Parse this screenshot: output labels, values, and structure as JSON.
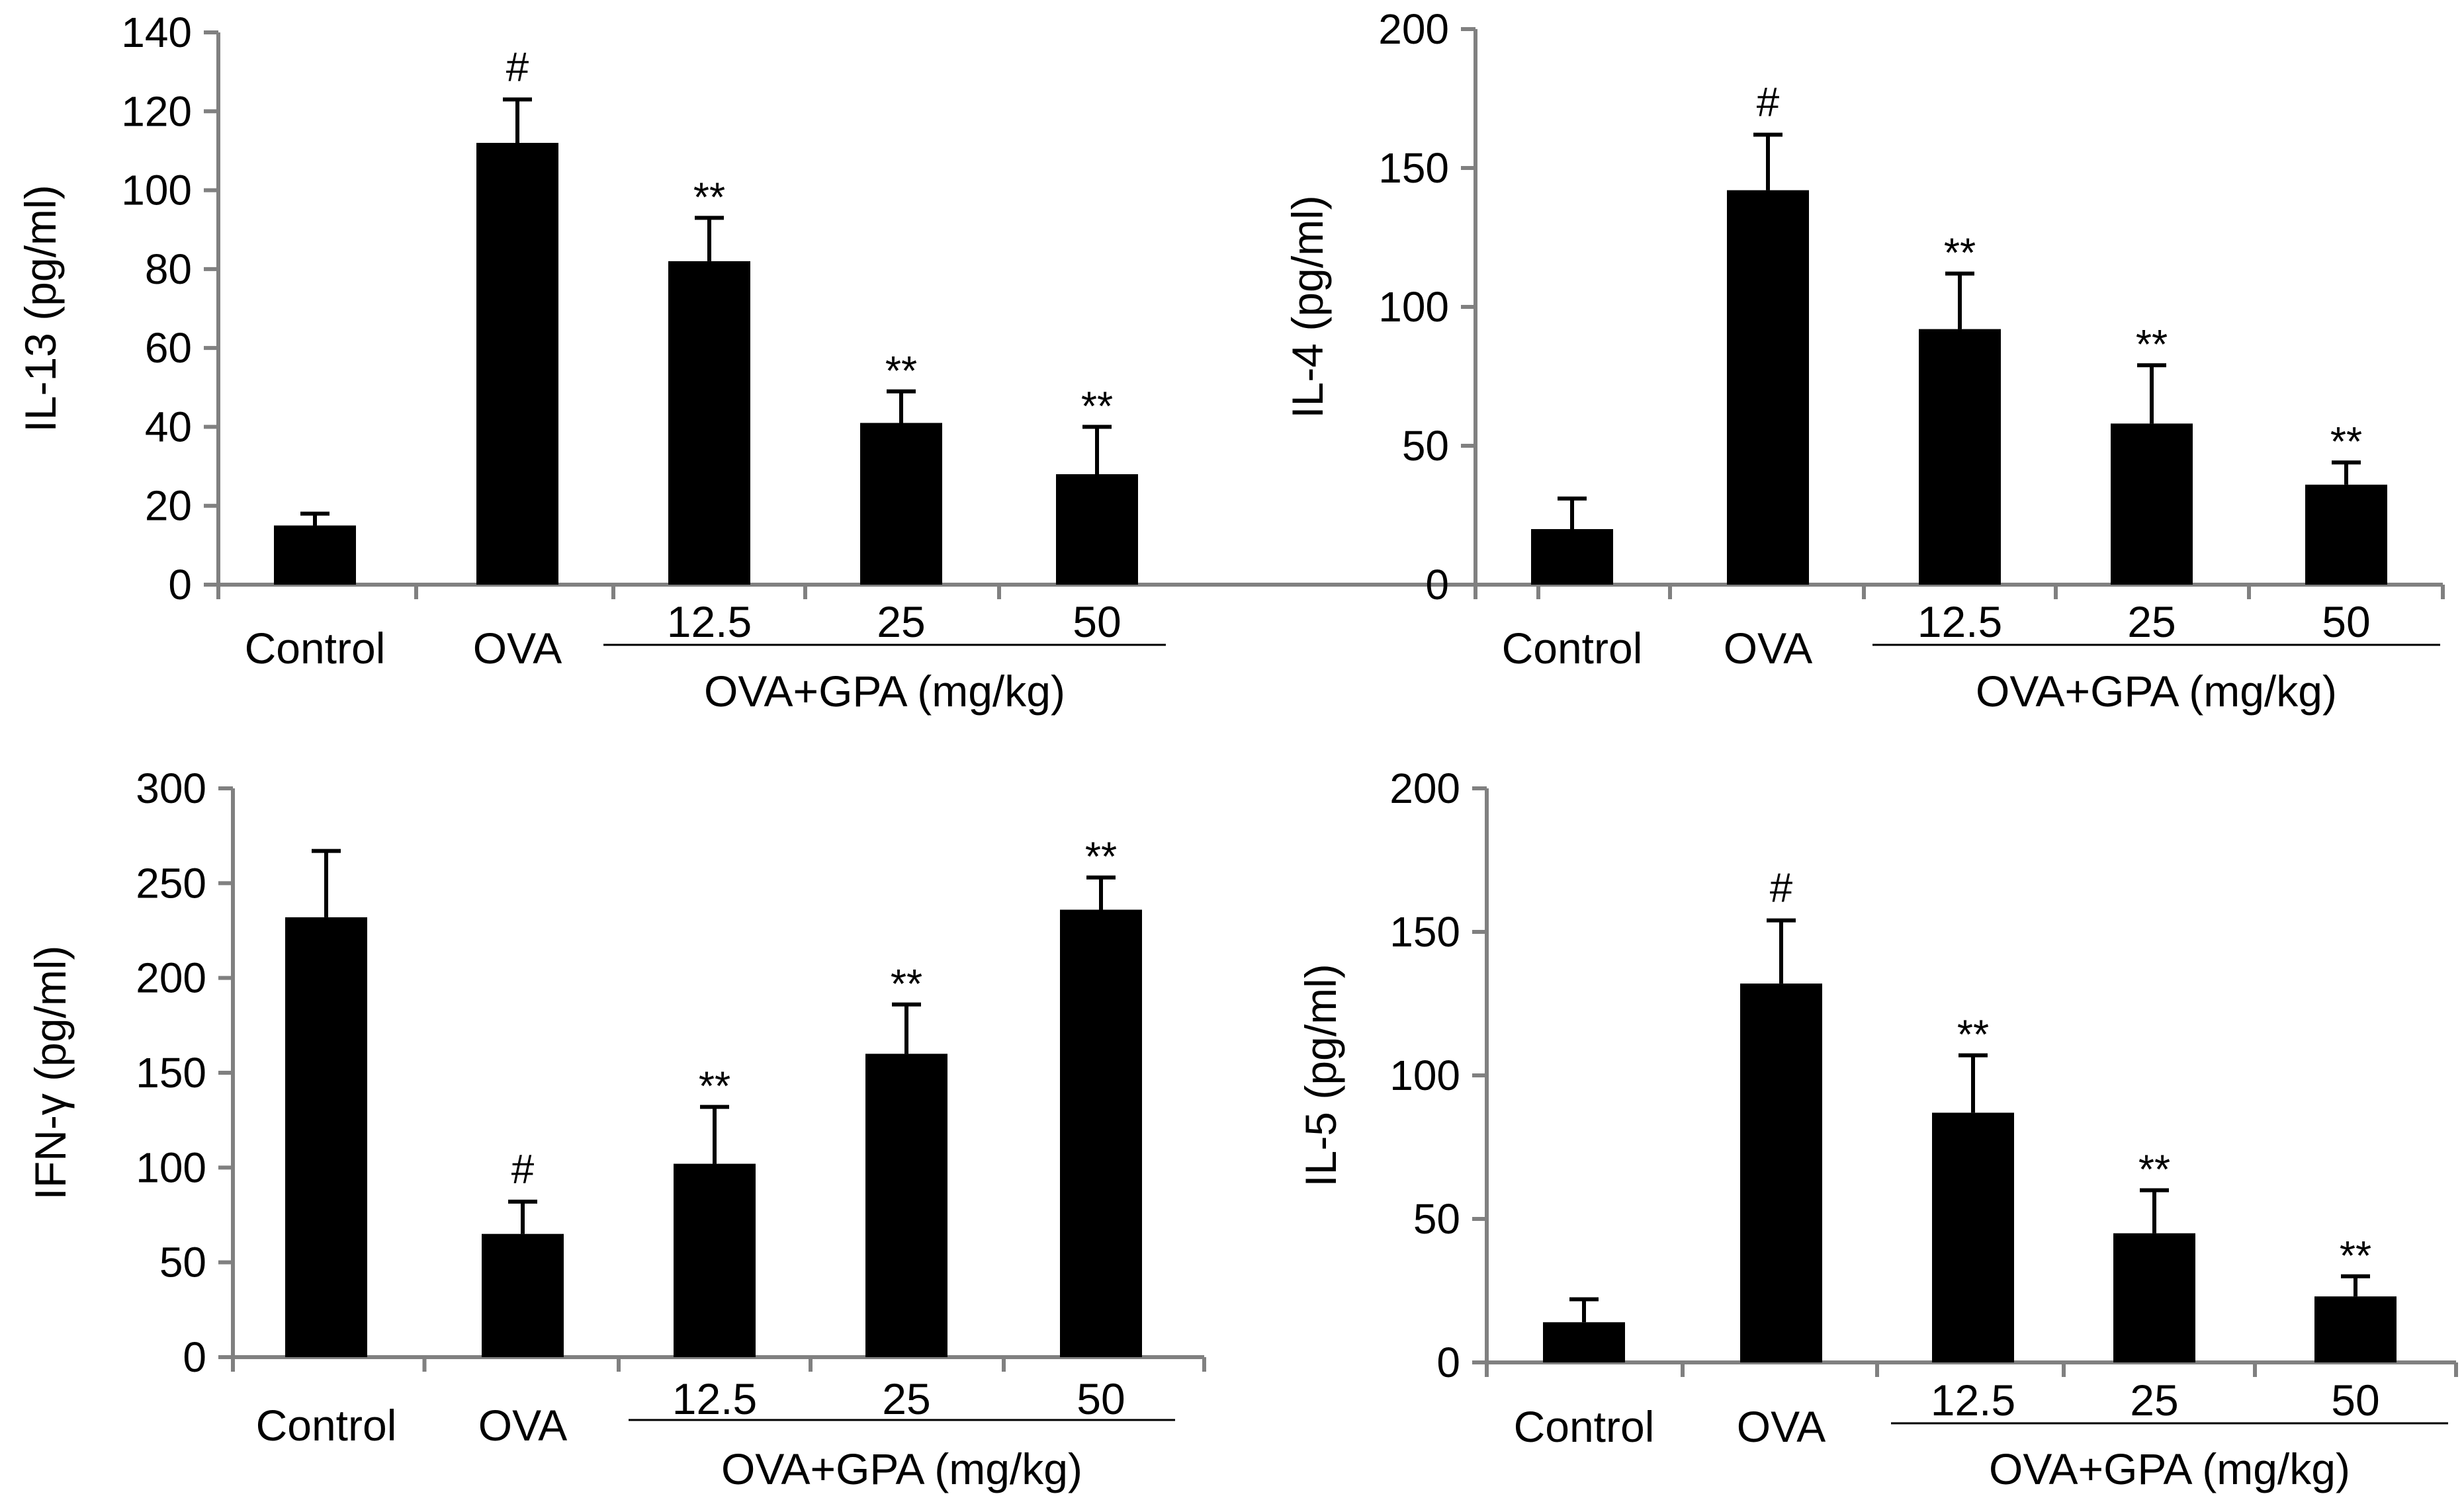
{
  "chart_data": [
    {
      "type": "bar",
      "panel": "top-left",
      "ylabel": "IL-13 (pg/ml)",
      "ylim": [
        0,
        140
      ],
      "yticks": [
        0,
        20,
        40,
        60,
        80,
        100,
        120,
        140
      ],
      "categories": [
        "Control",
        "OVA",
        "12.5",
        "25",
        "50"
      ],
      "values": [
        15,
        112,
        82,
        41,
        28
      ],
      "errors": [
        3,
        11,
        11,
        8,
        12
      ],
      "annotations": [
        "",
        "#",
        "**",
        "**",
        "**"
      ],
      "group_label": "OVA+GPA (mg/kg)"
    },
    {
      "type": "bar",
      "panel": "top-right",
      "ylabel": "IL-4 (pg/ml)",
      "ylim": [
        0,
        200
      ],
      "yticks": [
        0,
        50,
        100,
        150,
        200
      ],
      "categories": [
        "Control",
        "OVA",
        "12.5",
        "25",
        "50"
      ],
      "values": [
        20,
        142,
        92,
        58,
        36
      ],
      "errors": [
        11,
        20,
        20,
        21,
        8
      ],
      "annotations": [
        "",
        "#",
        "**",
        "**",
        "**"
      ],
      "group_label": "OVA+GPA (mg/kg)"
    },
    {
      "type": "bar",
      "panel": "bottom-left",
      "ylabel": "IFN-γ (pg/ml)",
      "ylim": [
        0,
        300
      ],
      "yticks": [
        0,
        50,
        100,
        150,
        200,
        250,
        300
      ],
      "categories": [
        "Control",
        "OVA",
        "12.5",
        "25",
        "50"
      ],
      "values": [
        232,
        65,
        102,
        160,
        236
      ],
      "errors": [
        35,
        17,
        30,
        26,
        17
      ],
      "annotations": [
        "",
        "#",
        "**",
        "**",
        "**"
      ],
      "group_label": "OVA+GPA (mg/kg)"
    },
    {
      "type": "bar",
      "panel": "bottom-right",
      "ylabel": "IL-5 (pg/ml)",
      "ylim": [
        0,
        200
      ],
      "yticks": [
        0,
        50,
        100,
        150,
        200
      ],
      "categories": [
        "Control",
        "OVA",
        "12.5",
        "25",
        "50"
      ],
      "values": [
        14,
        132,
        87,
        45,
        23
      ],
      "errors": [
        8,
        22,
        20,
        15,
        7
      ],
      "annotations": [
        "",
        "#",
        "**",
        "**",
        "**"
      ],
      "group_label": "OVA+GPA (mg/kg)"
    }
  ],
  "colors": {
    "bar": "#000000",
    "axis": "#808080",
    "text": "#000000"
  }
}
